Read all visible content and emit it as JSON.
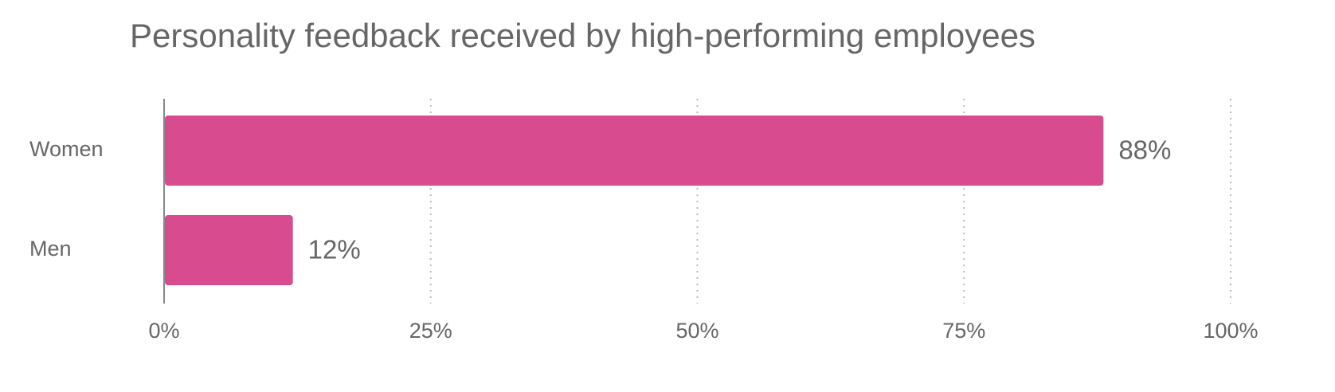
{
  "chart_data": {
    "type": "bar",
    "orientation": "horizontal",
    "title": "Personality feedback received by high-performing employees",
    "categories": [
      "Women",
      "Men"
    ],
    "values": [
      88,
      12
    ],
    "value_labels": [
      "88%",
      "12%"
    ],
    "color": "#d84b8e",
    "xlim": [
      0,
      100
    ],
    "xticks": [
      {
        "value": 0,
        "label": "0%"
      },
      {
        "value": 25,
        "label": "25%"
      },
      {
        "value": 50,
        "label": "50%"
      },
      {
        "value": 75,
        "label": "75%"
      },
      {
        "value": 100,
        "label": "100%"
      }
    ],
    "grid": true
  }
}
